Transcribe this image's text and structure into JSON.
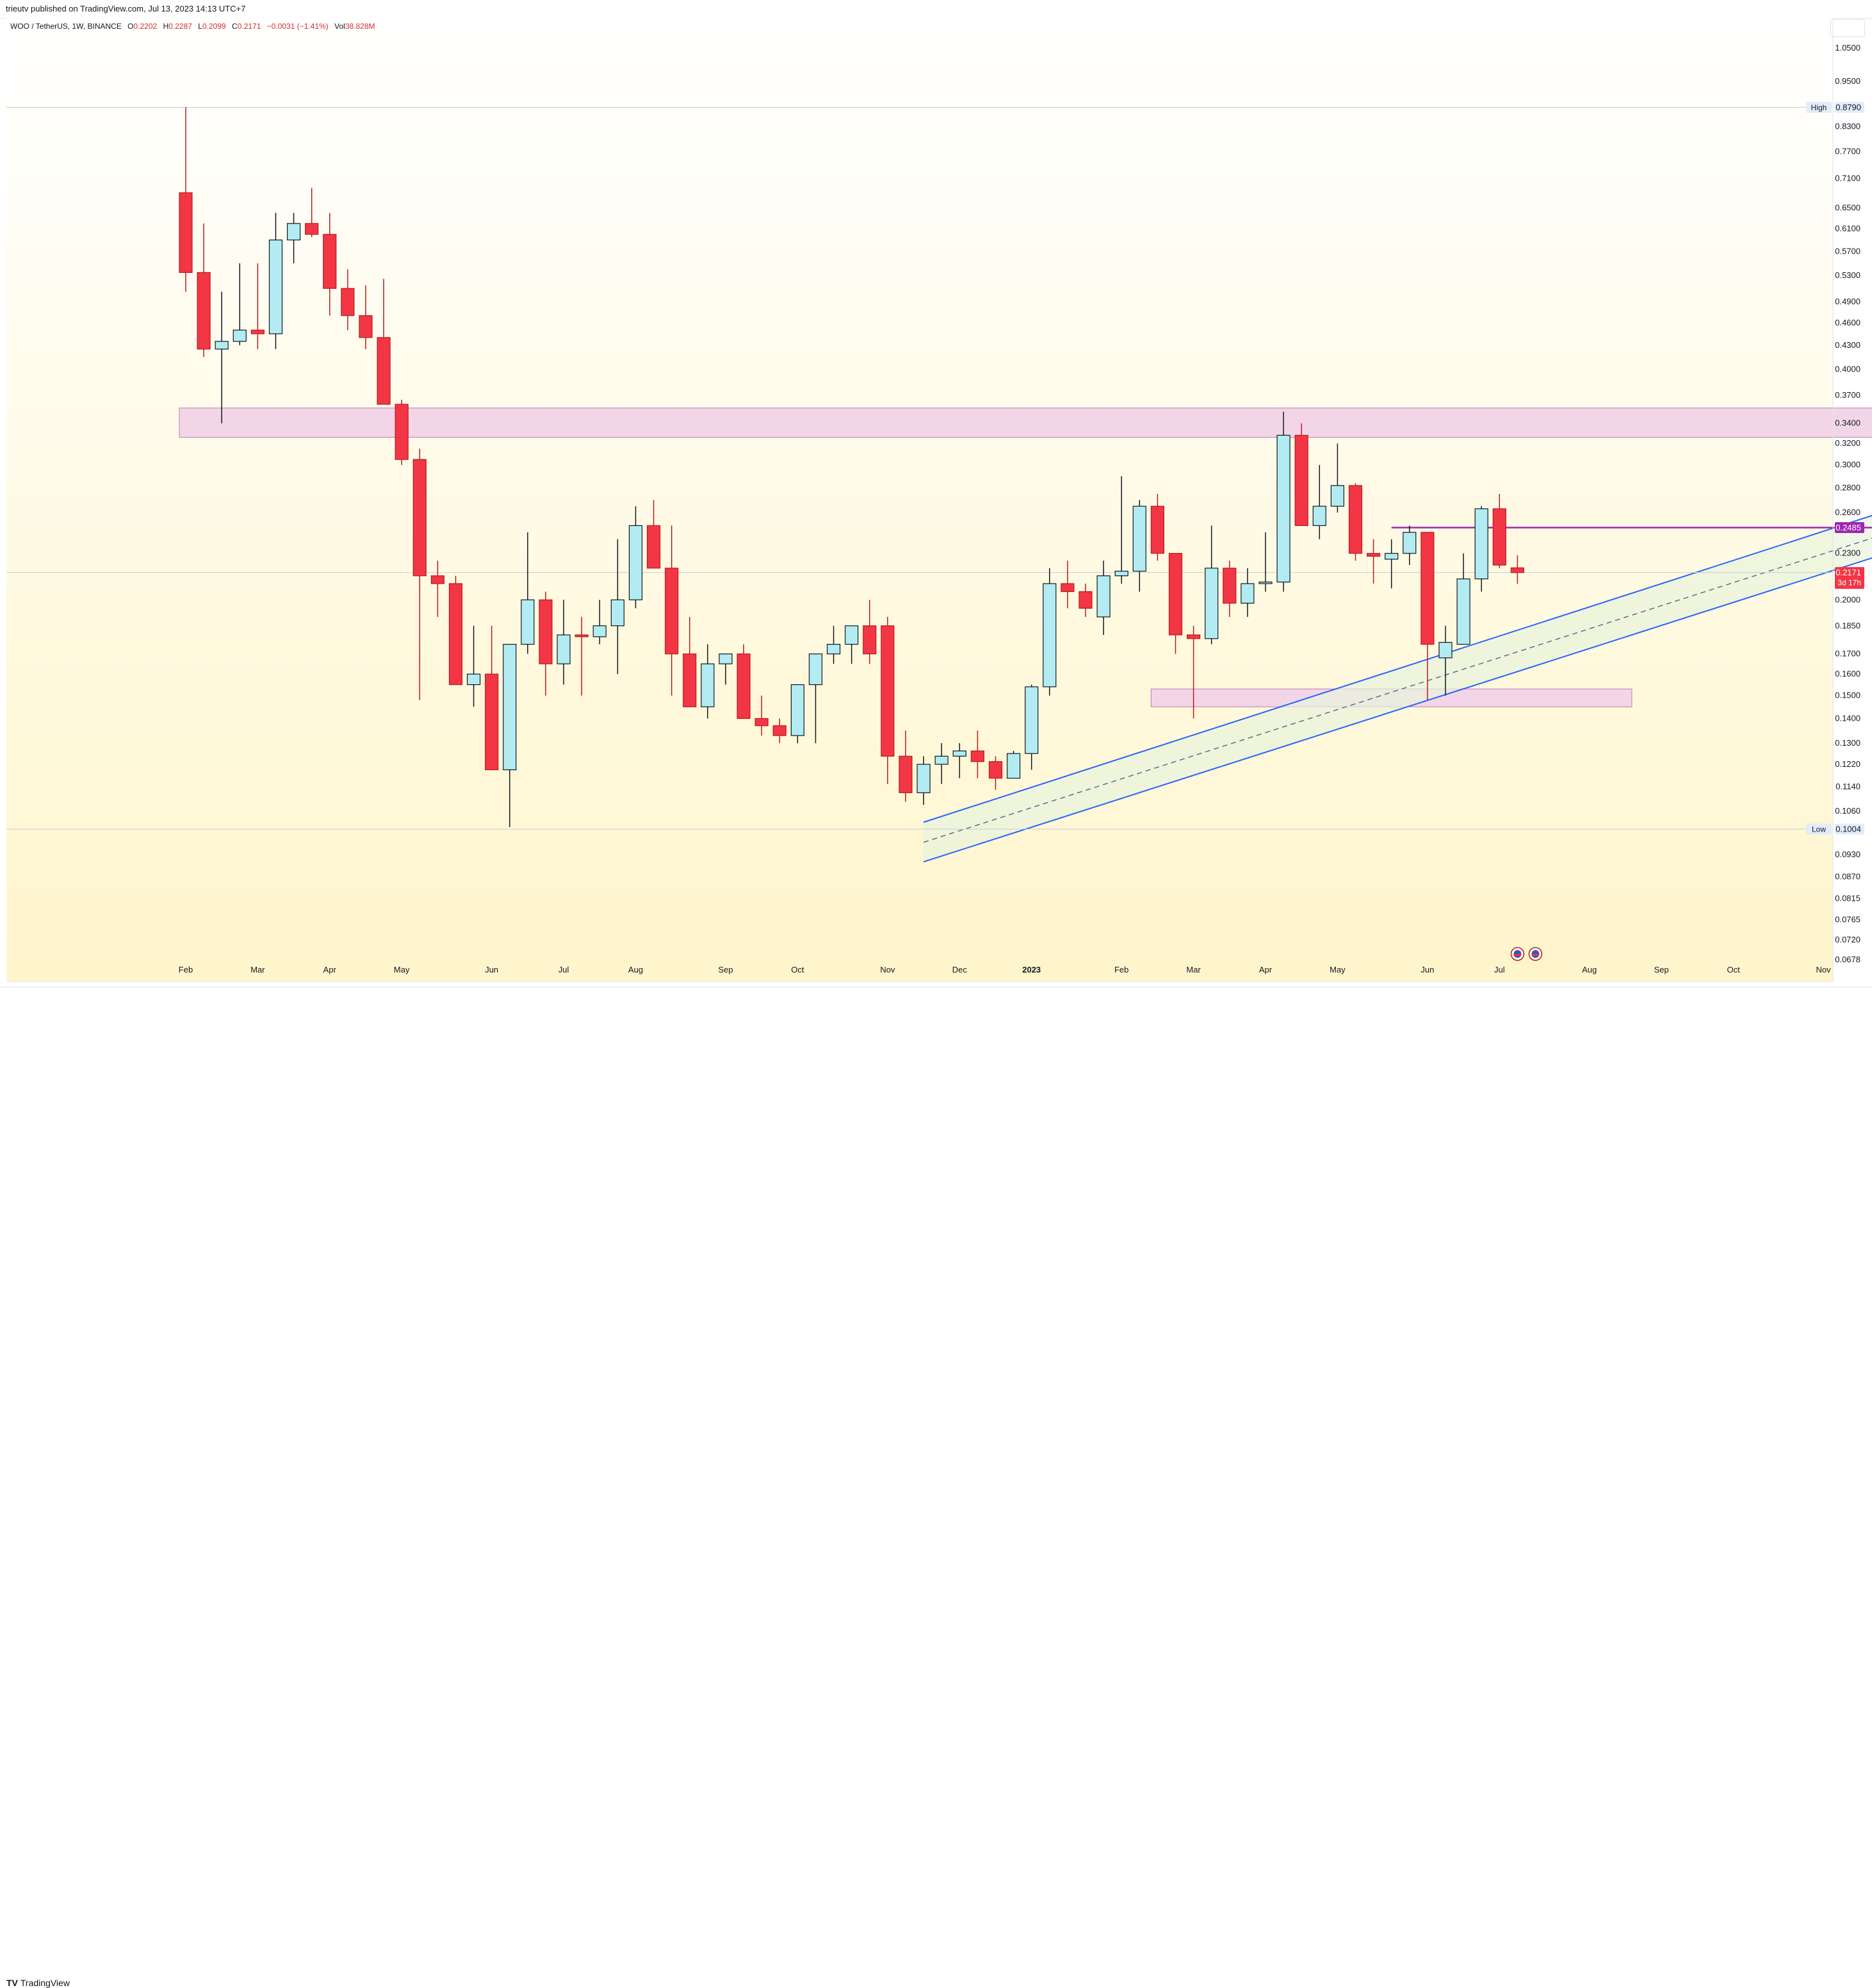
{
  "header": {
    "published": "trieutv published on TradingView.com, Jul 13, 2023 14:13 UTC+7"
  },
  "legend": {
    "symbol": "WOO / TetherUS, 1W, BINANCE",
    "open_label": "O",
    "open": "0.2202",
    "high_label": "H",
    "high": "0.2287",
    "low_label": "L",
    "low": "0.2099",
    "close_label": "C",
    "close": "0.2171",
    "change": "−0.0031 (−1.41%)",
    "vol_label": "Vol",
    "vol": "38.828M"
  },
  "footer": {
    "brand_mark": "TV",
    "brand": "TradingView"
  },
  "colors": {
    "up_fill": "#b2ebf2",
    "up_border": "#131722",
    "down_fill": "#f23645",
    "down_border": "#b71c1c",
    "zone_fill": "#f2d6e8",
    "zone_border": "#c07ab8",
    "channel": "#2962ff",
    "resistance": "#9c27b0"
  },
  "chart_data": {
    "type": "candlestick",
    "title": "WOO / TetherUS, 1W, BINANCE",
    "scale": "log",
    "ylim": [
      0.0635,
      1.15
    ],
    "y_ticks": [
      "1.0500",
      "0.9500",
      "0.8300",
      "0.7700",
      "0.7100",
      "0.6500",
      "0.6100",
      "0.5700",
      "0.5300",
      "0.4900",
      "0.4600",
      "0.4300",
      "0.4000",
      "0.3700",
      "0.3400",
      "0.3200",
      "0.3000",
      "0.2800",
      "0.2600",
      "0.2300",
      "0.2000",
      "0.1850",
      "0.1700",
      "0.1600",
      "0.1500",
      "0.1400",
      "0.1300",
      "0.1220",
      "0.1140",
      "0.1060",
      "0.0930",
      "0.0870",
      "0.0815",
      "0.0765",
      "0.0720",
      "0.0678"
    ],
    "x_ticks": [
      {
        "label": "Feb",
        "week": 0,
        "bold": false
      },
      {
        "label": "Mar",
        "week": 4,
        "bold": false
      },
      {
        "label": "Apr",
        "week": 8,
        "bold": false
      },
      {
        "label": "May",
        "week": 12,
        "bold": false
      },
      {
        "label": "Jun",
        "week": 17,
        "bold": false
      },
      {
        "label": "Jul",
        "week": 21,
        "bold": false
      },
      {
        "label": "Aug",
        "week": 25,
        "bold": false
      },
      {
        "label": "Sep",
        "week": 30,
        "bold": false
      },
      {
        "label": "Oct",
        "week": 34,
        "bold": false
      },
      {
        "label": "Nov",
        "week": 39,
        "bold": false
      },
      {
        "label": "Dec",
        "week": 43,
        "bold": false
      },
      {
        "label": "2023",
        "week": 47,
        "bold": true
      },
      {
        "label": "Feb",
        "week": 52,
        "bold": false
      },
      {
        "label": "Mar",
        "week": 56,
        "bold": false
      },
      {
        "label": "Apr",
        "week": 60,
        "bold": false
      },
      {
        "label": "May",
        "week": 64,
        "bold": false
      },
      {
        "label": "Jun",
        "week": 69,
        "bold": false
      },
      {
        "label": "Jul",
        "week": 73,
        "bold": false
      },
      {
        "label": "Aug",
        "week": 78,
        "bold": false
      },
      {
        "label": "Sep",
        "week": 82,
        "bold": false
      },
      {
        "label": "Oct",
        "week": 86,
        "bold": false
      },
      {
        "label": "Nov",
        "week": 91,
        "bold": false
      }
    ],
    "candles": [
      [
        0.68,
        0.879,
        0.505,
        0.535
      ],
      [
        0.535,
        0.62,
        0.415,
        0.425
      ],
      [
        0.425,
        0.505,
        0.34,
        0.435
      ],
      [
        0.435,
        0.55,
        0.43,
        0.45
      ],
      [
        0.45,
        0.55,
        0.425,
        0.445
      ],
      [
        0.445,
        0.64,
        0.425,
        0.59
      ],
      [
        0.59,
        0.64,
        0.55,
        0.62
      ],
      [
        0.62,
        0.69,
        0.595,
        0.6
      ],
      [
        0.6,
        0.64,
        0.47,
        0.51
      ],
      [
        0.51,
        0.54,
        0.45,
        0.47
      ],
      [
        0.47,
        0.515,
        0.425,
        0.44
      ],
      [
        0.44,
        0.525,
        0.365,
        0.36
      ],
      [
        0.36,
        0.365,
        0.3,
        0.305
      ],
      [
        0.305,
        0.315,
        0.148,
        0.215
      ],
      [
        0.215,
        0.225,
        0.19,
        0.21
      ],
      [
        0.21,
        0.215,
        0.155,
        0.155
      ],
      [
        0.155,
        0.185,
        0.145,
        0.16
      ],
      [
        0.16,
        0.185,
        0.12,
        0.12
      ],
      [
        0.12,
        0.175,
        0.101,
        0.175
      ],
      [
        0.175,
        0.245,
        0.17,
        0.2
      ],
      [
        0.2,
        0.205,
        0.15,
        0.165
      ],
      [
        0.165,
        0.2,
        0.155,
        0.18
      ],
      [
        0.18,
        0.19,
        0.15,
        0.179
      ],
      [
        0.179,
        0.2,
        0.175,
        0.185
      ],
      [
        0.185,
        0.24,
        0.16,
        0.2
      ],
      [
        0.2,
        0.265,
        0.195,
        0.25
      ],
      [
        0.25,
        0.27,
        0.22,
        0.22
      ],
      [
        0.22,
        0.25,
        0.15,
        0.17
      ],
      [
        0.17,
        0.19,
        0.145,
        0.145
      ],
      [
        0.145,
        0.175,
        0.14,
        0.165
      ],
      [
        0.165,
        0.17,
        0.155,
        0.17
      ],
      [
        0.17,
        0.175,
        0.14,
        0.14
      ],
      [
        0.14,
        0.15,
        0.133,
        0.137
      ],
      [
        0.137,
        0.14,
        0.13,
        0.133
      ],
      [
        0.133,
        0.155,
        0.13,
        0.155
      ],
      [
        0.155,
        0.17,
        0.13,
        0.17
      ],
      [
        0.17,
        0.185,
        0.165,
        0.175
      ],
      [
        0.175,
        0.185,
        0.165,
        0.185
      ],
      [
        0.185,
        0.2,
        0.165,
        0.17
      ],
      [
        0.185,
        0.19,
        0.115,
        0.125
      ],
      [
        0.125,
        0.135,
        0.109,
        0.112
      ],
      [
        0.112,
        0.125,
        0.108,
        0.122
      ],
      [
        0.122,
        0.13,
        0.115,
        0.125
      ],
      [
        0.125,
        0.13,
        0.117,
        0.127
      ],
      [
        0.127,
        0.135,
        0.117,
        0.123
      ],
      [
        0.123,
        0.125,
        0.113,
        0.117
      ],
      [
        0.117,
        0.127,
        0.117,
        0.126
      ],
      [
        0.126,
        0.155,
        0.12,
        0.154
      ],
      [
        0.154,
        0.22,
        0.15,
        0.21
      ],
      [
        0.21,
        0.225,
        0.195,
        0.205
      ],
      [
        0.205,
        0.21,
        0.19,
        0.195
      ],
      [
        0.19,
        0.225,
        0.18,
        0.215
      ],
      [
        0.215,
        0.29,
        0.21,
        0.218
      ],
      [
        0.218,
        0.27,
        0.205,
        0.265
      ],
      [
        0.265,
        0.275,
        0.225,
        0.23
      ],
      [
        0.23,
        0.23,
        0.17,
        0.18
      ],
      [
        0.18,
        0.185,
        0.14,
        0.178
      ],
      [
        0.178,
        0.25,
        0.175,
        0.22
      ],
      [
        0.22,
        0.225,
        0.19,
        0.198
      ],
      [
        0.198,
        0.22,
        0.19,
        0.21
      ],
      [
        0.21,
        0.245,
        0.205,
        0.211
      ],
      [
        0.211,
        0.352,
        0.205,
        0.328
      ],
      [
        0.328,
        0.34,
        0.25,
        0.25
      ],
      [
        0.25,
        0.3,
        0.24,
        0.265
      ],
      [
        0.265,
        0.32,
        0.26,
        0.282
      ],
      [
        0.282,
        0.284,
        0.225,
        0.23
      ],
      [
        0.23,
        0.24,
        0.21,
        0.228
      ],
      [
        0.226,
        0.24,
        0.207,
        0.23
      ],
      [
        0.23,
        0.25,
        0.222,
        0.245
      ],
      [
        0.245,
        0.245,
        0.148,
        0.175
      ],
      [
        0.168,
        0.185,
        0.15,
        0.176
      ],
      [
        0.175,
        0.23,
        0.175,
        0.213
      ],
      [
        0.213,
        0.265,
        0.205,
        0.263
      ],
      [
        0.263,
        0.275,
        0.22,
        0.222
      ],
      [
        0.2202,
        0.2287,
        0.2099,
        0.2171
      ]
    ],
    "levels": {
      "high": {
        "label": "High",
        "value": 0.879,
        "text": "0.8790"
      },
      "low": {
        "label": "Low",
        "value": 0.1004,
        "text": "0.1004"
      },
      "resistance": {
        "value": 0.2485,
        "text": "0.2485"
      },
      "last": {
        "value": 0.2171,
        "text": "0.2171",
        "countdown": "3d 17h"
      }
    },
    "zones": [
      {
        "name": "upper-supply-zone",
        "from_week": 0,
        "to_week": 94,
        "low": 0.326,
        "high": 0.356
      },
      {
        "name": "lower-demand-zone",
        "from_week": 54,
        "to_week": 80,
        "low": 0.145,
        "high": 0.153
      }
    ],
    "resistance_line": {
      "from_week": 67,
      "to_week": 94,
      "value": 0.2485
    },
    "channel": {
      "upper": [
        [
          41,
          0.1025
        ],
        [
          94,
          0.259
        ]
      ],
      "mid": [
        [
          41,
          0.0965
        ],
        [
          94,
          0.242
        ]
      ],
      "lower": [
        [
          41,
          0.091
        ],
        [
          94,
          0.228
        ]
      ]
    },
    "event_markers": [
      {
        "week": 74.5,
        "count": 2
      }
    ]
  }
}
